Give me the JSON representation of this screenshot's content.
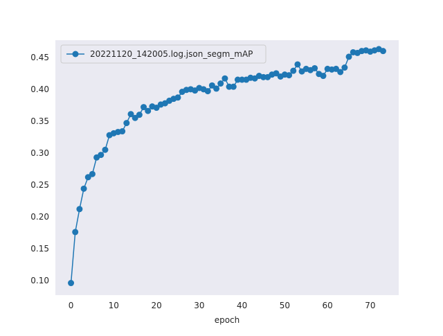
{
  "chart_data": {
    "type": "line",
    "title": "",
    "xlabel": "epoch",
    "ylabel": "",
    "xlim": [
      -3.65,
      76.65
    ],
    "ylim": [
      0.077,
      0.477
    ],
    "xticks": [
      0,
      10,
      20,
      30,
      40,
      50,
      60,
      70
    ],
    "yticks": [
      0.1,
      0.15,
      0.2,
      0.25,
      0.3,
      0.35,
      0.4,
      0.45
    ],
    "ytick_labels": [
      "0.10",
      "0.15",
      "0.20",
      "0.25",
      "0.30",
      "0.35",
      "0.40",
      "0.45"
    ],
    "grid": false,
    "legend_position": "top-left",
    "colors": {
      "series": "#1f77b4",
      "plot_background": "#eaeaf2"
    },
    "series": [
      {
        "name": "20221120_142005.log.json_segm_mAP",
        "marker": "circle",
        "x": [
          0,
          1,
          2,
          3,
          4,
          5,
          6,
          7,
          8,
          9,
          10,
          11,
          12,
          13,
          14,
          15,
          16,
          17,
          18,
          19,
          20,
          21,
          22,
          23,
          24,
          25,
          26,
          27,
          28,
          29,
          30,
          31,
          32,
          33,
          34,
          35,
          36,
          37,
          38,
          39,
          40,
          41,
          42,
          43,
          44,
          45,
          46,
          47,
          48,
          49,
          50,
          51,
          52,
          53,
          54,
          55,
          56,
          57,
          58,
          59,
          60,
          61,
          62,
          63,
          64,
          65,
          66,
          67,
          68,
          69,
          70,
          71,
          72,
          73
        ],
        "y": [
          0.096,
          0.176,
          0.212,
          0.244,
          0.262,
          0.267,
          0.293,
          0.297,
          0.305,
          0.328,
          0.331,
          0.333,
          0.334,
          0.347,
          0.361,
          0.355,
          0.36,
          0.372,
          0.366,
          0.373,
          0.371,
          0.376,
          0.378,
          0.382,
          0.385,
          0.387,
          0.396,
          0.399,
          0.4,
          0.398,
          0.402,
          0.4,
          0.397,
          0.406,
          0.401,
          0.409,
          0.417,
          0.404,
          0.404,
          0.415,
          0.415,
          0.415,
          0.418,
          0.417,
          0.421,
          0.419,
          0.419,
          0.423,
          0.425,
          0.42,
          0.423,
          0.422,
          0.429,
          0.439,
          0.428,
          0.432,
          0.43,
          0.433,
          0.424,
          0.421,
          0.432,
          0.431,
          0.432,
          0.427,
          0.434,
          0.451,
          0.458,
          0.457,
          0.46,
          0.461,
          0.459,
          0.461,
          0.463,
          0.46
        ]
      }
    ]
  }
}
